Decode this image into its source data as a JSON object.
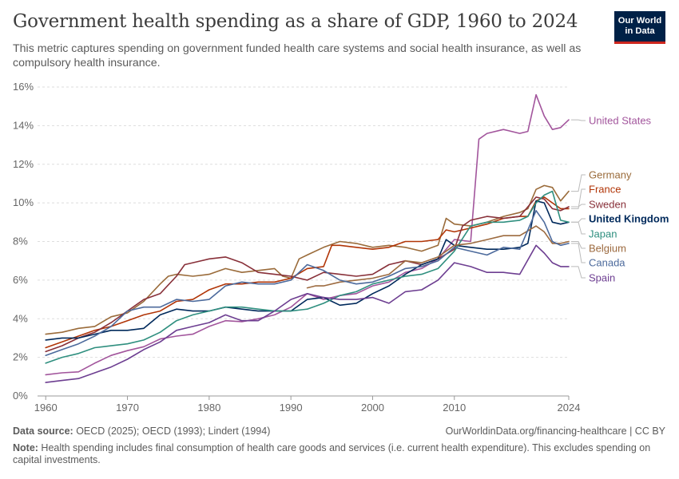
{
  "header": {
    "title": "Government health spending as a share of GDP, 1960 to 2024",
    "subtitle": "This metric captures spending on government funded health care systems and social health insurance, as well as compulsory health insurance.",
    "logo_line1": "Our World",
    "logo_line2": "in Data"
  },
  "footer": {
    "source_label": "Data source:",
    "source_text": " OECD (2025); OECD (1993); Lindert (1994)",
    "link_text": "OurWorldinData.org/financing-healthcare | CC BY",
    "note_label": "Note:",
    "note_text": " Health spending includes final consumption of health care goods and services (i.e. current health expenditure). This excludes spending on capital investments."
  },
  "colors": {
    "United States": "#a2559c",
    "Germany": "#9a6b3a",
    "France": "#b13507",
    "Sweden": "#883039",
    "United Kingdom": "#00295b",
    "Japan": "#2f8f7f",
    "Belgium": "#9c6a3f",
    "Canada": "#4c6a9c",
    "Spain": "#6d3e91"
  },
  "chart_data": {
    "type": "line",
    "title": "Government health spending as a share of GDP, 1960 to 2024",
    "xlabel": "",
    "ylabel": "",
    "xlim": [
      1959,
      2024
    ],
    "ylim": [
      0,
      16
    ],
    "x_ticks": [
      "1960",
      "1970",
      "1980",
      "1990",
      "2000",
      "2010",
      "2024"
    ],
    "x_tick_values": [
      1960,
      1970,
      1980,
      1990,
      2000,
      2010,
      2024
    ],
    "y_ticks": [
      "0%",
      "2%",
      "4%",
      "6%",
      "8%",
      "10%",
      "12%",
      "14%",
      "16%"
    ],
    "y_tick_values": [
      0,
      2,
      4,
      6,
      8,
      10,
      12,
      14,
      16
    ],
    "grid": "horizontal dashed",
    "legend": "right-edge line labels",
    "series": [
      {
        "name": "United States",
        "x": [
          1960,
          1962,
          1964,
          1966,
          1968,
          1970,
          1972,
          1974,
          1976,
          1978,
          1980,
          1982,
          1984,
          1986,
          1988,
          1990,
          1992,
          1994,
          1996,
          1998,
          2000,
          2002,
          2004,
          2006,
          2008,
          2010,
          2012,
          2013,
          2014,
          2016,
          2018,
          2019,
          2020,
          2021,
          2022,
          2023,
          2024
        ],
        "y": [
          1.1,
          1.2,
          1.25,
          1.7,
          2.1,
          2.35,
          2.55,
          2.95,
          3.1,
          3.2,
          3.6,
          3.9,
          3.85,
          4.0,
          4.2,
          4.6,
          5.3,
          5.0,
          5.2,
          5.3,
          5.7,
          5.9,
          6.4,
          6.6,
          7.1,
          8.1,
          8.0,
          13.3,
          13.6,
          13.8,
          13.6,
          13.7,
          15.6,
          14.5,
          13.8,
          13.9,
          14.3
        ]
      },
      {
        "name": "Germany",
        "x": [
          1960,
          1962,
          1964,
          1966,
          1968,
          1970,
          1972,
          1974,
          1975,
          1976,
          1978,
          1980,
          1982,
          1984,
          1986,
          1988,
          1989,
          1990,
          1991,
          1992,
          1994,
          1996,
          1998,
          2000,
          2002,
          2004,
          2006,
          2008,
          2009,
          2010,
          2012,
          2014,
          2016,
          2018,
          2019,
          2020,
          2021,
          2022,
          2023,
          2024
        ],
        "y": [
          3.2,
          3.3,
          3.5,
          3.6,
          4.1,
          4.3,
          4.9,
          5.8,
          6.2,
          6.3,
          6.2,
          6.3,
          6.6,
          6.4,
          6.5,
          6.6,
          6.2,
          6.1,
          7.1,
          7.3,
          7.7,
          8.0,
          7.9,
          7.7,
          7.8,
          7.7,
          7.5,
          7.8,
          9.2,
          8.9,
          8.8,
          9.0,
          9.3,
          9.5,
          9.7,
          10.7,
          10.9,
          10.8,
          10.1,
          10.6
        ]
      },
      {
        "name": "France",
        "x": [
          1960,
          1962,
          1964,
          1966,
          1968,
          1970,
          1972,
          1974,
          1976,
          1978,
          1980,
          1982,
          1984,
          1986,
          1988,
          1990,
          1992,
          1994,
          1995,
          1996,
          1998,
          2000,
          2002,
          2004,
          2006,
          2008,
          2009,
          2010,
          2012,
          2014,
          2016,
          2018,
          2019,
          2020,
          2021,
          2022,
          2023,
          2024
        ],
        "y": [
          2.5,
          2.8,
          3.1,
          3.4,
          3.6,
          3.9,
          4.2,
          4.4,
          4.9,
          5.0,
          5.5,
          5.8,
          5.8,
          5.9,
          5.9,
          6.1,
          6.6,
          6.7,
          7.8,
          7.8,
          7.7,
          7.6,
          7.7,
          8.0,
          8.0,
          8.1,
          8.6,
          8.5,
          8.7,
          8.9,
          9.2,
          9.3,
          9.3,
          10.1,
          10.3,
          10.0,
          9.7,
          9.7
        ]
      },
      {
        "name": "Sweden",
        "x": [
          1960,
          1962,
          1964,
          1966,
          1968,
          1970,
          1972,
          1974,
          1976,
          1977,
          1978,
          1980,
          1982,
          1984,
          1986,
          1988,
          1990,
          1992,
          1994,
          1996,
          1998,
          2000,
          2002,
          2004,
          2006,
          2008,
          2010,
          2011,
          2012,
          2014,
          2016,
          2018,
          2020,
          2021,
          2022,
          2023,
          2024
        ],
        "y": [
          2.3,
          2.6,
          3.0,
          3.3,
          3.8,
          4.4,
          5.0,
          5.3,
          6.2,
          6.8,
          6.9,
          7.1,
          7.2,
          6.9,
          6.4,
          6.3,
          6.2,
          6.0,
          6.4,
          6.3,
          6.2,
          6.3,
          6.8,
          7.0,
          6.8,
          7.1,
          7.6,
          8.8,
          9.1,
          9.3,
          9.2,
          9.3,
          10.3,
          10.2,
          9.7,
          9.6,
          9.8
        ]
      },
      {
        "name": "United Kingdom",
        "x": [
          1960,
          1962,
          1964,
          1966,
          1968,
          1970,
          1972,
          1974,
          1976,
          1978,
          1980,
          1982,
          1984,
          1986,
          1988,
          1990,
          1992,
          1994,
          1996,
          1998,
          2000,
          2002,
          2004,
          2006,
          2008,
          2009,
          2010,
          2012,
          2014,
          2016,
          2018,
          2019,
          2020,
          2021,
          2022,
          2023,
          2024
        ],
        "y": [
          2.9,
          3.0,
          3.0,
          3.2,
          3.4,
          3.4,
          3.5,
          4.2,
          4.5,
          4.4,
          4.4,
          4.6,
          4.5,
          4.4,
          4.4,
          4.4,
          5.0,
          5.1,
          4.7,
          4.8,
          5.3,
          5.7,
          6.3,
          6.8,
          7.1,
          8.1,
          7.8,
          7.7,
          7.6,
          7.6,
          7.7,
          7.9,
          10.1,
          10.0,
          9.0,
          8.9,
          9.0
        ]
      },
      {
        "name": "Japan",
        "x": [
          1960,
          1962,
          1964,
          1966,
          1968,
          1970,
          1972,
          1974,
          1976,
          1978,
          1980,
          1982,
          1984,
          1986,
          1988,
          1990,
          1992,
          1994,
          1996,
          1998,
          2000,
          2002,
          2004,
          2006,
          2008,
          2010,
          2012,
          2014,
          2016,
          2018,
          2019,
          2020,
          2021,
          2022,
          2023,
          2024
        ],
        "y": [
          1.7,
          2.0,
          2.2,
          2.5,
          2.6,
          2.7,
          2.9,
          3.3,
          3.9,
          4.2,
          4.4,
          4.6,
          4.6,
          4.5,
          4.4,
          4.4,
          4.5,
          4.8,
          5.2,
          5.4,
          5.8,
          6.0,
          6.2,
          6.3,
          6.6,
          7.5,
          8.8,
          9.0,
          9.0,
          9.1,
          9.3,
          10.0,
          10.4,
          10.6,
          9.1,
          9.0
        ]
      },
      {
        "name": "Belgium",
        "x": [
          1992,
          1993,
          1994,
          1996,
          1998,
          2000,
          2002,
          2004,
          2006,
          2008,
          2010,
          2012,
          2014,
          2016,
          2018,
          2020,
          2021,
          2022,
          2023,
          2024
        ],
        "y": [
          5.6,
          5.7,
          5.7,
          5.9,
          6.0,
          6.1,
          6.3,
          7.0,
          6.9,
          7.2,
          7.8,
          7.9,
          8.1,
          8.3,
          8.3,
          8.8,
          8.5,
          7.9,
          7.9,
          8.0
        ]
      },
      {
        "name": "Canada",
        "x": [
          1960,
          1962,
          1964,
          1966,
          1968,
          1970,
          1972,
          1974,
          1976,
          1978,
          1980,
          1982,
          1984,
          1986,
          1988,
          1990,
          1992,
          1994,
          1996,
          1998,
          2000,
          2002,
          2004,
          2006,
          2008,
          2010,
          2012,
          2014,
          2016,
          2018,
          2020,
          2021,
          2022,
          2023,
          2024
        ],
        "y": [
          2.1,
          2.4,
          2.7,
          3.1,
          3.6,
          4.4,
          4.6,
          4.6,
          5.0,
          4.9,
          5.0,
          5.7,
          5.9,
          5.8,
          5.8,
          6.0,
          6.8,
          6.5,
          6.0,
          5.8,
          5.9,
          6.2,
          6.6,
          6.7,
          7.0,
          7.7,
          7.5,
          7.3,
          7.7,
          7.6,
          9.6,
          9.0,
          8.0,
          7.8,
          7.9
        ]
      },
      {
        "name": "Spain",
        "x": [
          1960,
          1962,
          1964,
          1966,
          1968,
          1970,
          1972,
          1974,
          1976,
          1978,
          1980,
          1982,
          1984,
          1986,
          1988,
          1990,
          1992,
          1994,
          1996,
          1998,
          2000,
          2002,
          2004,
          2006,
          2008,
          2010,
          2012,
          2014,
          2016,
          2018,
          2020,
          2021,
          2022,
          2023,
          2024
        ],
        "y": [
          0.7,
          0.8,
          0.9,
          1.2,
          1.5,
          1.9,
          2.4,
          2.8,
          3.4,
          3.6,
          3.8,
          4.2,
          3.9,
          3.9,
          4.4,
          5.0,
          5.3,
          5.1,
          5.0,
          5.0,
          5.1,
          4.8,
          5.4,
          5.5,
          6.0,
          6.9,
          6.7,
          6.4,
          6.4,
          6.3,
          7.8,
          7.4,
          6.9,
          6.7,
          6.7
        ]
      }
    ]
  }
}
